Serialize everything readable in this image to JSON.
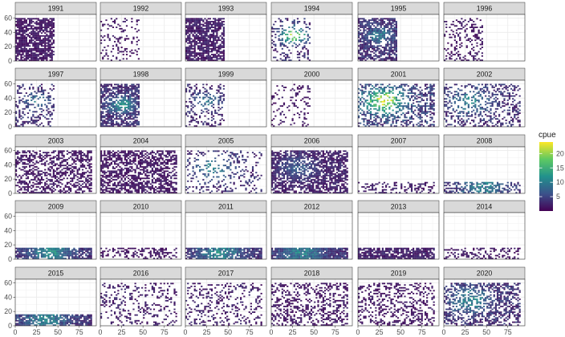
{
  "chart_data": {
    "type": "heatmap",
    "facet_by": "year",
    "layout": {
      "ncol": 6,
      "nrow": 5
    },
    "xlim": [
      0,
      95
    ],
    "ylim": [
      0,
      65
    ],
    "x_ticks": [
      0,
      25,
      50,
      75
    ],
    "y_ticks": [
      0,
      20,
      40,
      60
    ],
    "grid": true,
    "legend": {
      "title": "cpue",
      "position": "right",
      "breaks": [
        5,
        10,
        15,
        20
      ],
      "limits": [
        0,
        24
      ],
      "colormap": "viridis"
    },
    "panels": [
      {
        "year": "1991",
        "x_range": [
          0,
          45
        ],
        "y_range": [
          0,
          60
        ],
        "density": 0.8,
        "mean_cpue": 1.5,
        "hotspot": null
      },
      {
        "year": "1992",
        "x_range": [
          0,
          45
        ],
        "y_range": [
          0,
          60
        ],
        "density": 0.2,
        "mean_cpue": 1.5,
        "hotspot": null
      },
      {
        "year": "1993",
        "x_range": [
          0,
          45
        ],
        "y_range": [
          0,
          60
        ],
        "density": 0.75,
        "mean_cpue": 1.8,
        "hotspot": null
      },
      {
        "year": "1994",
        "x_range": [
          0,
          45
        ],
        "y_range": [
          0,
          60
        ],
        "density": 0.3,
        "mean_cpue": 3,
        "hotspot": {
          "x": 25,
          "y": 35,
          "peak": 21,
          "radius": 14
        }
      },
      {
        "year": "1995",
        "x_range": [
          0,
          45
        ],
        "y_range": [
          0,
          60
        ],
        "density": 0.7,
        "mean_cpue": 3,
        "hotspot": {
          "x": 25,
          "y": 35,
          "peak": 8,
          "radius": 15
        }
      },
      {
        "year": "1996",
        "x_range": [
          0,
          45
        ],
        "y_range": [
          0,
          60
        ],
        "density": 0.25,
        "mean_cpue": 1.5,
        "hotspot": null
      },
      {
        "year": "1997",
        "x_range": [
          0,
          45
        ],
        "y_range": [
          0,
          60
        ],
        "density": 0.3,
        "mean_cpue": 3,
        "hotspot": {
          "x": 25,
          "y": 35,
          "peak": 8,
          "radius": 14
        }
      },
      {
        "year": "1998",
        "x_range": [
          0,
          45
        ],
        "y_range": [
          0,
          60
        ],
        "density": 0.7,
        "mean_cpue": 3,
        "hotspot": {
          "x": 25,
          "y": 30,
          "peak": 12,
          "radius": 14
        }
      },
      {
        "year": "1999",
        "x_range": [
          0,
          45
        ],
        "y_range": [
          0,
          60
        ],
        "density": 0.3,
        "mean_cpue": 2.5,
        "hotspot": {
          "x": 25,
          "y": 35,
          "peak": 9,
          "radius": 14
        }
      },
      {
        "year": "2000",
        "x_range": [
          0,
          45
        ],
        "y_range": [
          0,
          60
        ],
        "density": 0.18,
        "mean_cpue": 1.5,
        "hotspot": null
      },
      {
        "year": "2001",
        "x_range": [
          0,
          90
        ],
        "y_range": [
          0,
          60
        ],
        "density": 0.45,
        "mean_cpue": 4,
        "hotspot": {
          "x": 30,
          "y": 35,
          "peak": 21,
          "radius": 22
        }
      },
      {
        "year": "2002",
        "x_range": [
          0,
          90
        ],
        "y_range": [
          0,
          60
        ],
        "density": 0.35,
        "mean_cpue": 3,
        "hotspot": {
          "x": 30,
          "y": 35,
          "peak": 9,
          "radius": 22
        }
      },
      {
        "year": "2003",
        "x_range": [
          0,
          90
        ],
        "y_range": [
          0,
          60
        ],
        "density": 0.5,
        "mean_cpue": 1.5,
        "hotspot": null
      },
      {
        "year": "2004",
        "x_range": [
          0,
          90
        ],
        "y_range": [
          0,
          60
        ],
        "density": 0.6,
        "mean_cpue": 1.5,
        "hotspot": null
      },
      {
        "year": "2005",
        "x_range": [
          0,
          90
        ],
        "y_range": [
          0,
          60
        ],
        "density": 0.2,
        "mean_cpue": 3,
        "hotspot": {
          "x": 30,
          "y": 35,
          "peak": 10,
          "radius": 20
        }
      },
      {
        "year": "2006",
        "x_range": [
          0,
          90
        ],
        "y_range": [
          0,
          60
        ],
        "density": 0.7,
        "mean_cpue": 2,
        "hotspot": {
          "x": 30,
          "y": 35,
          "peak": 6,
          "radius": 20
        }
      },
      {
        "year": "2007",
        "x_range": [
          0,
          90
        ],
        "y_range": [
          0,
          16
        ],
        "density": 0.35,
        "mean_cpue": 2,
        "hotspot": null
      },
      {
        "year": "2008",
        "x_range": [
          0,
          90
        ],
        "y_range": [
          0,
          16
        ],
        "density": 0.5,
        "mean_cpue": 3,
        "hotspot": {
          "x": 45,
          "y": 8,
          "peak": 9,
          "radius": 25
        }
      },
      {
        "year": "2009",
        "x_range": [
          0,
          90
        ],
        "y_range": [
          0,
          16
        ],
        "density": 0.8,
        "mean_cpue": 3,
        "hotspot": {
          "x": 40,
          "y": 8,
          "peak": 10,
          "radius": 25
        }
      },
      {
        "year": "2010",
        "x_range": [
          0,
          90
        ],
        "y_range": [
          0,
          16
        ],
        "density": 0.35,
        "mean_cpue": 1.5,
        "hotspot": null
      },
      {
        "year": "2011",
        "x_range": [
          0,
          90
        ],
        "y_range": [
          0,
          16
        ],
        "density": 0.8,
        "mean_cpue": 3,
        "hotspot": {
          "x": 40,
          "y": 8,
          "peak": 10,
          "radius": 25
        }
      },
      {
        "year": "2012",
        "x_range": [
          0,
          90
        ],
        "y_range": [
          0,
          16
        ],
        "density": 0.92,
        "mean_cpue": 3,
        "hotspot": {
          "x": 35,
          "y": 8,
          "peak": 9,
          "radius": 25
        }
      },
      {
        "year": "2013",
        "x_range": [
          0,
          90
        ],
        "y_range": [
          0,
          16
        ],
        "density": 0.8,
        "mean_cpue": 2,
        "hotspot": null
      },
      {
        "year": "2014",
        "x_range": [
          0,
          90
        ],
        "y_range": [
          0,
          16
        ],
        "density": 0.3,
        "mean_cpue": 1.5,
        "hotspot": null
      },
      {
        "year": "2015",
        "x_range": [
          0,
          90
        ],
        "y_range": [
          0,
          16
        ],
        "density": 0.8,
        "mean_cpue": 3,
        "hotspot": {
          "x": 35,
          "y": 8,
          "peak": 9,
          "radius": 25
        }
      },
      {
        "year": "2016",
        "x_range": [
          0,
          90
        ],
        "y_range": [
          0,
          60
        ],
        "density": 0.2,
        "mean_cpue": 2,
        "hotspot": null
      },
      {
        "year": "2017",
        "x_range": [
          0,
          90
        ],
        "y_range": [
          0,
          60
        ],
        "density": 0.22,
        "mean_cpue": 2,
        "hotspot": null
      },
      {
        "year": "2018",
        "x_range": [
          0,
          90
        ],
        "y_range": [
          0,
          60
        ],
        "density": 0.35,
        "mean_cpue": 1.5,
        "hotspot": null
      },
      {
        "year": "2019",
        "x_range": [
          0,
          90
        ],
        "y_range": [
          0,
          60
        ],
        "density": 0.3,
        "mean_cpue": 1.5,
        "hotspot": null
      },
      {
        "year": "2020",
        "x_range": [
          0,
          90
        ],
        "y_range": [
          0,
          60
        ],
        "density": 0.5,
        "mean_cpue": 3,
        "hotspot": {
          "x": 30,
          "y": 35,
          "peak": 10,
          "radius": 22
        }
      }
    ]
  }
}
